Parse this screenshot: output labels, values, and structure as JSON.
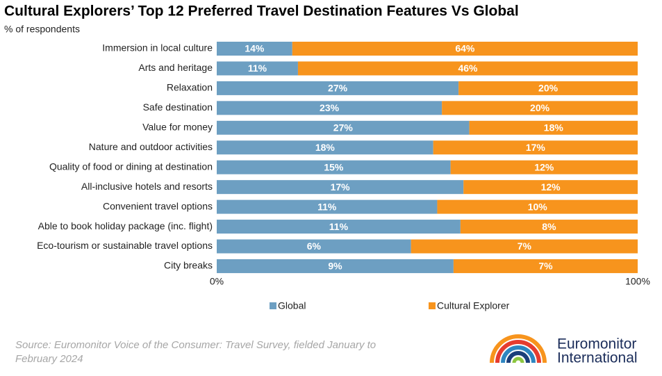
{
  "chart_data": {
    "type": "bar",
    "orientation": "horizontal",
    "stack": "percent",
    "title": "Cultural Explorers’ Top 12 Preferred Travel Destination Features Vs Global",
    "subtitle": "% of respondents",
    "categories": [
      "Immersion in local culture",
      "Arts and heritage",
      "Relaxation",
      "Safe destination",
      "Value for money",
      "Nature and outdoor activities",
      "Quality of food or dining at destination",
      "All-inclusive hotels and resorts",
      "Convenient travel options",
      "Able to book holiday package (inc. flight)",
      "Eco-tourism or sustainable travel options",
      "City breaks"
    ],
    "series": [
      {
        "name": "Global",
        "color": "#6d9fc2",
        "values": [
          14,
          11,
          27,
          23,
          27,
          18,
          15,
          17,
          11,
          11,
          6,
          9
        ],
        "value_labels": [
          "14%",
          "11%",
          "27%",
          "23%",
          "27%",
          "18%",
          "15%",
          "17%",
          "11%",
          "11%",
          "6%",
          "9%"
        ]
      },
      {
        "name": "Cultural Explorer",
        "color": "#f7941d",
        "values": [
          64,
          46,
          20,
          20,
          18,
          17,
          12,
          12,
          10,
          8,
          7,
          7
        ],
        "value_labels": [
          "64%",
          "46%",
          "20%",
          "20%",
          "18%",
          "17%",
          "12%",
          "12%",
          "10%",
          "8%",
          "7%",
          "7%"
        ]
      }
    ],
    "xlim": [
      0,
      100
    ],
    "xticks": [
      {
        "value": 0,
        "label": "0%"
      },
      {
        "value": 100,
        "label": "100%"
      }
    ],
    "grid": false,
    "legend": "bottom",
    "source": "Source: Euromonitor Voice of the Consumer: Travel Survey, fielded January to February 2024",
    "logo": [
      "Euromonitor",
      "International"
    ]
  }
}
